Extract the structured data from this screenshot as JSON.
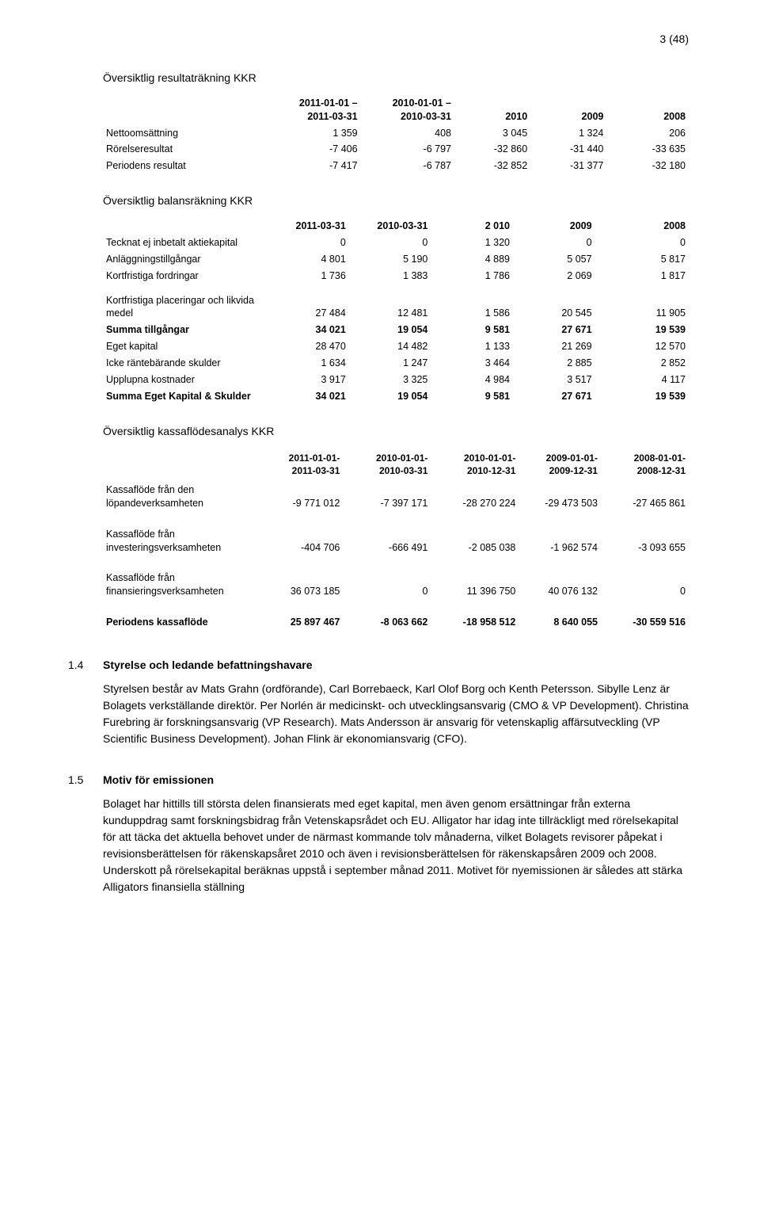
{
  "page_number": "3 (48)",
  "t1": {
    "title": "Översiktlig resultaträkning KKR",
    "headers": [
      "",
      "2011-01-01 –\n2011-03-31",
      "2010-01-01 –\n2010-03-31",
      "2010",
      "2009",
      "2008"
    ],
    "rows": [
      {
        "label": "Nettoomsättning",
        "bold": false,
        "c": [
          "1 359",
          "408",
          "3 045",
          "1 324",
          "206"
        ]
      },
      {
        "label": "Rörelseresultat",
        "bold": false,
        "c": [
          "-7 406",
          "-6 797",
          "-32 860",
          "-31 440",
          "-33 635"
        ]
      },
      {
        "label": "Periodens resultat",
        "bold": false,
        "c": [
          "-7 417",
          "-6 787",
          "-32 852",
          "-31 377",
          "-32 180"
        ]
      }
    ],
    "col_widths": [
      "28%",
      "16%",
      "16%",
      "13%",
      "13%",
      "14%"
    ]
  },
  "t2": {
    "title": "Översiktlig balansräkning KKR",
    "headers": [
      "",
      "2011-03-31",
      "2010-03-31",
      "2 010",
      "2009",
      "2008"
    ],
    "rows": [
      {
        "label": "Tecknat ej inbetalt aktiekapital",
        "bold": false,
        "c": [
          "0",
          "0",
          "1 320",
          "0",
          "0"
        ]
      },
      {
        "label": "Anläggningstillgångar",
        "bold": false,
        "c": [
          "4 801",
          "5 190",
          "4 889",
          "5 057",
          "5 817"
        ]
      },
      {
        "label": "Kortfristiga fordringar",
        "bold": false,
        "c": [
          "1 736",
          "1 383",
          "1 786",
          "2 069",
          "1 817"
        ]
      },
      {
        "label": "",
        "bold": false,
        "c": [
          "",
          "",
          "",
          "",
          ""
        ],
        "spacer": true
      },
      {
        "label": "Kortfristiga placeringar och likvida medel",
        "bold": false,
        "c": [
          "27 484",
          "12 481",
          "1 586",
          "20 545",
          "11 905"
        ]
      },
      {
        "label": "Summa tillgångar",
        "bold": true,
        "c": [
          "34 021",
          "19 054",
          "9 581",
          "27 671",
          "19 539"
        ]
      },
      {
        "label": "Eget kapital",
        "bold": false,
        "c": [
          "28 470",
          "14 482",
          "1 133",
          "21 269",
          "12 570"
        ]
      },
      {
        "label": "Icke räntebärande skulder",
        "bold": false,
        "c": [
          "1 634",
          "1 247",
          "3 464",
          "2 885",
          "2 852"
        ]
      },
      {
        "label": "Upplupna kostnader",
        "bold": false,
        "c": [
          "3 917",
          "3 325",
          "4 984",
          "3 517",
          "4 117"
        ]
      },
      {
        "label": "Summa Eget Kapital & Skulder",
        "bold": true,
        "c": [
          "34 021",
          "19 054",
          "9 581",
          "27 671",
          "19 539"
        ]
      }
    ],
    "col_widths": [
      "28%",
      "14%",
      "14%",
      "14%",
      "14%",
      "16%"
    ]
  },
  "t3": {
    "title": "Översiktlig kassaflödesanalys KKR",
    "headers": [
      "",
      "2011-01-01-\n2011-03-31",
      "2010-01-01-\n2010-03-31",
      "2010-01-01-\n2010-12-31",
      "2009-01-01-\n2009-12-31",
      "2008-01-01-\n2008-12-31"
    ],
    "rows": [
      {
        "label": "Kassaflöde från den löpandeverksamheten",
        "bold": false,
        "c": [
          "-9 771 012",
          "-7 397 171",
          "-28 270 224",
          "-29 473 503",
          "-27 465 861"
        ]
      },
      {
        "label": "",
        "bold": false,
        "c": [
          "",
          "",
          "",
          "",
          ""
        ],
        "spacer": true
      },
      {
        "label": "Kassaflöde från investeringsverksamheten",
        "bold": false,
        "c": [
          "-404 706",
          "-666 491",
          "-2 085 038",
          "-1 962 574",
          "-3 093 655"
        ]
      },
      {
        "label": "",
        "bold": false,
        "c": [
          "",
          "",
          "",
          "",
          ""
        ],
        "spacer": true
      },
      {
        "label": "Kassaflöde från finansieringsverksamheten",
        "bold": false,
        "c": [
          "36 073 185",
          "0",
          "11 396 750",
          "40 076 132",
          "0"
        ]
      },
      {
        "label": "",
        "bold": false,
        "c": [
          "",
          "",
          "",
          "",
          ""
        ],
        "spacer": true
      },
      {
        "label": "Periodens kassaflöde",
        "bold": true,
        "c": [
          "25 897 467",
          "-8 063 662",
          "-18 958 512",
          "8 640 055",
          "-30 559 516"
        ]
      }
    ],
    "col_widths": [
      "26%",
      "15%",
      "15%",
      "15%",
      "14%",
      "15%"
    ]
  },
  "sec14": {
    "num": "1.4",
    "title": "Styrelse och ledande befattningshavare",
    "para": "Styrelsen består av Mats Grahn (ordförande), Carl Borrebaeck, Karl Olof Borg och Kenth Petersson. Sibylle Lenz är Bolagets verkställande direktör. Per Norlén är medicinskt- och utvecklingsansvarig (CMO & VP Development). Christina Furebring är forskningsansvarig (VP Research). Mats Andersson är ansvarig för vetenskaplig affärsutveckling (VP Scientific Business Development). Johan Flink är ekonomiansvarig (CFO)."
  },
  "sec15": {
    "num": "1.5",
    "title": "Motiv för emissionen",
    "para": "Bolaget har hittills till största delen finansierats med eget kapital, men även genom ersättningar från externa kunduppdrag samt forskningsbidrag från Vetenskapsrådet och EU. Alligator har idag inte tillräckligt med rörelsekapital för att täcka det aktuella behovet under de närmast kommande tolv månaderna, vilket Bolagets revisorer påpekat i revisionsberättelsen för räkenskapsåret 2010 och även i revisionsberättelsen för räkenskapsåren 2009 och 2008. Underskott på rörelsekapital beräknas uppstå i september månad 2011. Motivet för nyemissionen är således att stärka Alligators finansiella ställning"
  }
}
